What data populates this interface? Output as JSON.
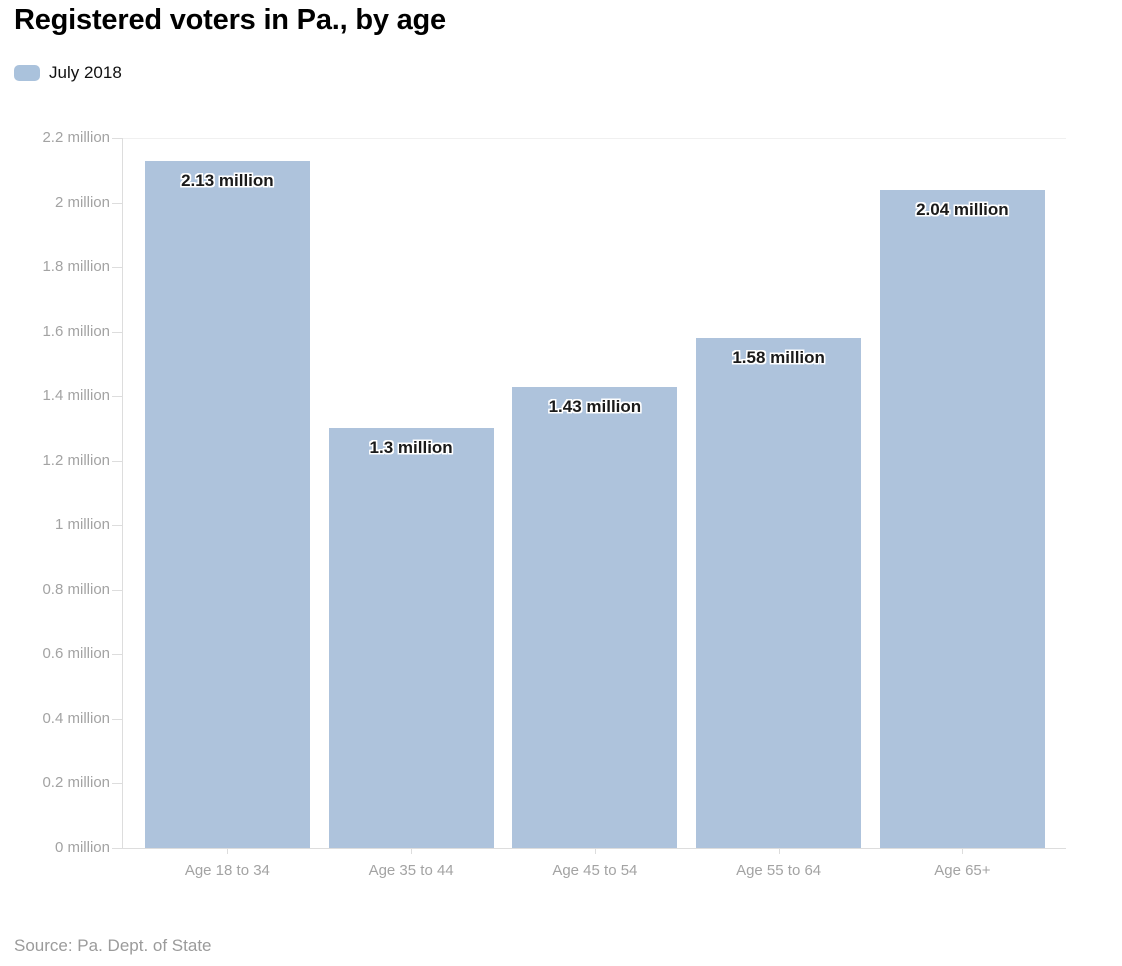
{
  "header": {
    "title": "Registered voters in Pa., by age",
    "legend": {
      "label": "July 2018"
    }
  },
  "footer": {
    "source": "Source: Pa. Dept. of State"
  },
  "colors": {
    "bar": "#aec3dc",
    "legend_swatch": "#aac2dc",
    "axis": "#dddddd",
    "gridline": "#f0f0f0",
    "tick_label": "#a3a3a3",
    "bar_label_text": "#1a1a1a"
  },
  "chart_data": {
    "type": "bar",
    "title": "Registered voters in Pa., by age",
    "series_name": "July 2018",
    "categories": [
      "Age 18 to 34",
      "Age 35 to 44",
      "Age 45 to 54",
      "Age 55 to 64",
      "Age 65+"
    ],
    "values": [
      2.13,
      1.3,
      1.43,
      1.58,
      2.04
    ],
    "bar_labels": [
      "2.13 million",
      "1.3 million",
      "1.43 million",
      "1.58 million",
      "2.04 million"
    ],
    "xlabel": "",
    "ylabel": "",
    "ylim": [
      0,
      2.2
    ],
    "y_ticks": [
      0,
      0.2,
      0.4,
      0.6,
      0.8,
      1,
      1.2,
      1.4,
      1.6,
      1.8,
      2,
      2.2
    ],
    "y_tick_labels": [
      "0 million",
      "0.2 million",
      "0.4 million",
      "0.6 million",
      "0.8 million",
      "1 million",
      "1.2 million",
      "1.4 million",
      "1.6 million",
      "1.8 million",
      "2 million",
      "2.2 million"
    ],
    "grid": "off",
    "legend_position": "top-left",
    "source": "Source: Pa. Dept. of State"
  }
}
